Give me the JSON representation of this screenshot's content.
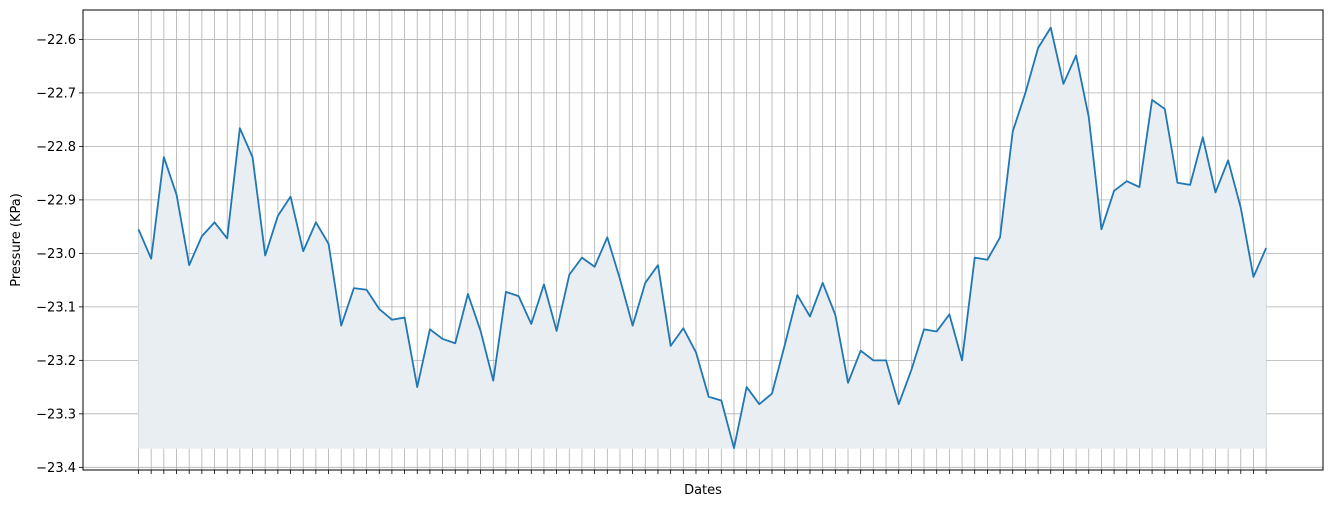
{
  "chart_data": {
    "type": "area",
    "xlabel": "Dates",
    "ylabel": "Pressure (KPa)",
    "ylim": [
      -23.405,
      -22.545
    ],
    "yticks": [
      -23.4,
      -23.3,
      -23.2,
      -23.1,
      -23.0,
      -22.9,
      -22.8,
      -22.7,
      -22.6
    ],
    "ytick_labels": [
      "−23.4",
      "−23.3",
      "−23.2",
      "−23.1",
      "−23.0",
      "−22.9",
      "−22.8",
      "−22.7",
      "−22.6"
    ],
    "fill_baseline": -23.365,
    "grid": true,
    "colors": {
      "line": "#1f77b4",
      "fill": "#e8eef2",
      "grid": "#b0b0b0"
    },
    "series": [
      {
        "values": [
          -22.955,
          -23.01,
          -22.82,
          -22.89,
          -23.022,
          -22.968,
          -22.942,
          -22.972,
          -22.766,
          -22.82,
          -23.004,
          -22.93,
          -22.894,
          -22.996,
          -22.942,
          -22.982,
          -23.135,
          -23.065,
          -23.068,
          -23.104,
          -23.124,
          -23.12,
          -23.25,
          -23.142,
          -23.16,
          -23.168,
          -23.076,
          -23.145,
          -23.238,
          -23.072,
          -23.08,
          -23.132,
          -23.058,
          -23.145,
          -23.04,
          -23.008,
          -23.025,
          -22.97,
          -23.048,
          -23.135,
          -23.055,
          -23.022,
          -23.173,
          -23.14,
          -23.185,
          -23.268,
          -23.275,
          -23.364,
          -23.25,
          -23.282,
          -23.262,
          -23.172,
          -23.078,
          -23.118,
          -23.055,
          -23.115,
          -23.242,
          -23.182,
          -23.2,
          -23.2,
          -23.282,
          -23.218,
          -23.142,
          -23.146,
          -23.114,
          -23.2,
          -23.008,
          -23.012,
          -22.97,
          -22.772,
          -22.7,
          -22.616,
          -22.578,
          -22.683,
          -22.63,
          -22.745,
          -22.955,
          -22.883,
          -22.865,
          -22.876,
          -22.713,
          -22.73,
          -22.868,
          -22.872,
          -22.783,
          -22.886,
          -22.826,
          -22.915,
          -23.044,
          -22.99
        ]
      }
    ]
  }
}
